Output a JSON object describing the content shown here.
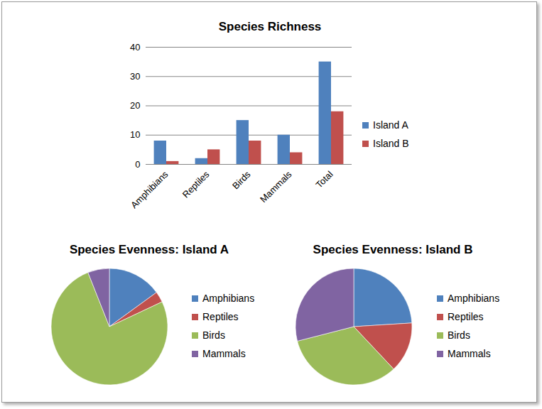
{
  "chart_data": [
    {
      "type": "bar",
      "title": "Species Richness",
      "categories": [
        "Amphibians",
        "Reptiles",
        "Birds",
        "Mammals",
        "Total"
      ],
      "series": [
        {
          "name": "Island A",
          "color": "#4f81bd",
          "values": [
            8,
            2,
            15,
            10,
            35
          ]
        },
        {
          "name": "Island B",
          "color": "#c0504d",
          "values": [
            1,
            5,
            8,
            4,
            18
          ]
        }
      ],
      "ylim": [
        0,
        40
      ],
      "yticks": [
        0,
        10,
        20,
        30,
        40
      ],
      "grid": true,
      "legend": "right"
    },
    {
      "type": "pie",
      "title": "Species Evenness: Island A",
      "categories": [
        "Amphibians",
        "Reptiles",
        "Birds",
        "Mammals"
      ],
      "values": [
        15,
        3,
        76,
        6
      ],
      "colors": [
        "#4f81bd",
        "#c0504d",
        "#9bbb59",
        "#8064a2"
      ],
      "legend": "right"
    },
    {
      "type": "pie",
      "title": "Species Evenness: Island B",
      "categories": [
        "Amphibians",
        "Reptiles",
        "Birds",
        "Mammals"
      ],
      "values": [
        24,
        14,
        33,
        29
      ],
      "colors": [
        "#4f81bd",
        "#c0504d",
        "#9bbb59",
        "#8064a2"
      ],
      "legend": "right"
    }
  ]
}
